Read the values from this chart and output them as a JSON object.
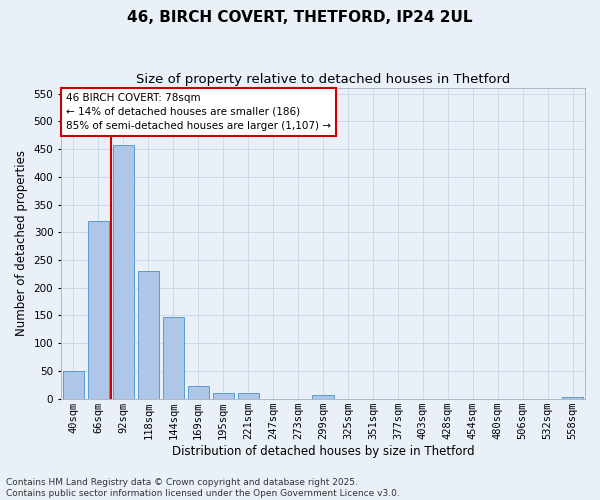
{
  "title1": "46, BIRCH COVERT, THETFORD, IP24 2UL",
  "title2": "Size of property relative to detached houses in Thetford",
  "xlabel": "Distribution of detached houses by size in Thetford",
  "ylabel": "Number of detached properties",
  "categories": [
    "40sqm",
    "66sqm",
    "92sqm",
    "118sqm",
    "144sqm",
    "169sqm",
    "195sqm",
    "221sqm",
    "247sqm",
    "273sqm",
    "299sqm",
    "325sqm",
    "351sqm",
    "377sqm",
    "403sqm",
    "428sqm",
    "454sqm",
    "480sqm",
    "506sqm",
    "532sqm",
    "558sqm"
  ],
  "values": [
    50,
    320,
    457,
    230,
    148,
    22,
    10,
    10,
    0,
    0,
    6,
    0,
    0,
    0,
    0,
    0,
    0,
    0,
    0,
    0,
    3
  ],
  "bar_color": "#aec6e8",
  "bar_edge_color": "#5b9bd5",
  "grid_color": "#c8d4e8",
  "bg_color": "#eaf0f8",
  "annotation_text": "46 BIRCH COVERT: 78sqm\n← 14% of detached houses are smaller (186)\n85% of semi-detached houses are larger (1,107) →",
  "annotation_box_color": "#ffffff",
  "annotation_box_edge": "#cc0000",
  "red_line_color": "#cc0000",
  "footer": "Contains HM Land Registry data © Crown copyright and database right 2025.\nContains public sector information licensed under the Open Government Licence v3.0.",
  "ylim": [
    0,
    560
  ],
  "yticks": [
    0,
    50,
    100,
    150,
    200,
    250,
    300,
    350,
    400,
    450,
    500,
    550
  ],
  "title_fontsize": 11,
  "subtitle_fontsize": 9.5,
  "label_fontsize": 8.5,
  "tick_fontsize": 7.5,
  "footer_fontsize": 6.5,
  "annot_fontsize": 7.5
}
